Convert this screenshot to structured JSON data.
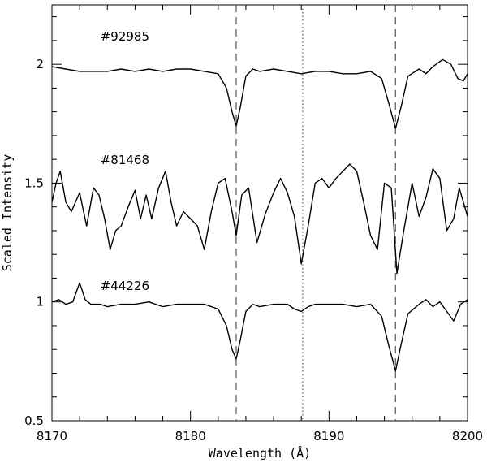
{
  "chart_data": {
    "type": "line",
    "title": "",
    "xlabel": "Wavelength (Å)",
    "ylabel": "Scaled Intensity",
    "xlim": [
      8170,
      8200
    ],
    "ylim": [
      0.5,
      2.25
    ],
    "grid": false,
    "x_ticks": [
      8170,
      8180,
      8190,
      8200
    ],
    "x_tick_labels": [
      "8170",
      "8180",
      "8190",
      "8200"
    ],
    "y_ticks": [
      0.5,
      1,
      1.5,
      2
    ],
    "y_tick_labels": [
      "0.5",
      "1",
      "1.5",
      "2"
    ],
    "reference_lines": [
      {
        "x": 8183.3,
        "style": "dashed",
        "color": "#555555"
      },
      {
        "x": 8188.1,
        "style": "dotted",
        "color": "#555555"
      },
      {
        "x": 8194.8,
        "style": "dashed",
        "color": "#555555"
      }
    ],
    "series": [
      {
        "name": "#92985",
        "label_position": [
          8173.5,
          2.1
        ],
        "x": [
          8170.0,
          8171.0,
          8172.0,
          8173.0,
          8174.0,
          8175.0,
          8176.0,
          8177.0,
          8178.0,
          8179.0,
          8180.0,
          8181.0,
          8182.0,
          8182.6,
          8183.0,
          8183.3,
          8183.6,
          8184.0,
          8184.5,
          8185.0,
          8186.0,
          8187.0,
          8188.0,
          8189.0,
          8190.0,
          8191.0,
          8192.0,
          8193.0,
          8193.8,
          8194.3,
          8194.8,
          8195.2,
          8195.7,
          8196.5,
          8197.0,
          8197.5,
          8198.2,
          8198.8,
          8199.3,
          8199.7,
          8200.0
        ],
        "y": [
          1.99,
          1.98,
          1.97,
          1.97,
          1.97,
          1.98,
          1.97,
          1.98,
          1.97,
          1.98,
          1.98,
          1.97,
          1.96,
          1.9,
          1.8,
          1.74,
          1.82,
          1.95,
          1.98,
          1.97,
          1.98,
          1.97,
          1.96,
          1.97,
          1.97,
          1.96,
          1.96,
          1.97,
          1.94,
          1.84,
          1.73,
          1.82,
          1.95,
          1.98,
          1.96,
          1.99,
          2.02,
          2.0,
          1.94,
          1.93,
          1.96
        ]
      },
      {
        "name": "#81468",
        "label_position": [
          8173.5,
          1.58
        ],
        "x": [
          8170.0,
          8170.3,
          8170.6,
          8171.0,
          8171.4,
          8172.0,
          8172.5,
          8173.0,
          8173.4,
          8173.8,
          8174.2,
          8174.6,
          8175.0,
          8175.5,
          8176.0,
          8176.4,
          8176.8,
          8177.2,
          8177.7,
          8178.2,
          8178.6,
          8179.0,
          8179.5,
          8180.0,
          8180.5,
          8181.0,
          8181.5,
          8182.0,
          8182.5,
          8183.0,
          8183.3,
          8183.7,
          8184.2,
          8184.8,
          8185.4,
          8186.0,
          8186.5,
          8187.0,
          8187.5,
          8188.0,
          8188.5,
          8189.0,
          8189.5,
          8190.0,
          8190.5,
          8191.0,
          8191.5,
          8192.0,
          8192.5,
          8193.0,
          8193.5,
          8194.0,
          8194.5,
          8194.9,
          8195.4,
          8196.0,
          8196.5,
          8197.0,
          8197.5,
          8198.0,
          8198.5,
          8199.0,
          8199.4,
          8199.7,
          8200.0
        ],
        "y": [
          1.42,
          1.5,
          1.55,
          1.42,
          1.38,
          1.46,
          1.32,
          1.48,
          1.45,
          1.35,
          1.22,
          1.3,
          1.32,
          1.4,
          1.47,
          1.35,
          1.45,
          1.35,
          1.48,
          1.55,
          1.42,
          1.32,
          1.38,
          1.35,
          1.32,
          1.22,
          1.38,
          1.5,
          1.52,
          1.38,
          1.28,
          1.45,
          1.48,
          1.25,
          1.37,
          1.46,
          1.52,
          1.46,
          1.36,
          1.16,
          1.32,
          1.5,
          1.52,
          1.48,
          1.52,
          1.55,
          1.58,
          1.55,
          1.42,
          1.28,
          1.22,
          1.5,
          1.48,
          1.12,
          1.3,
          1.5,
          1.36,
          1.44,
          1.56,
          1.52,
          1.3,
          1.35,
          1.48,
          1.42,
          1.36
        ]
      },
      {
        "name": "#44226",
        "label_position": [
          8173.5,
          1.05
        ],
        "x": [
          8170.0,
          8170.5,
          8171.0,
          8171.5,
          8172.0,
          8172.4,
          8172.8,
          8173.5,
          8174.0,
          8175.0,
          8176.0,
          8177.0,
          8178.0,
          8179.0,
          8180.0,
          8181.0,
          8182.0,
          8182.6,
          8183.0,
          8183.3,
          8183.6,
          8184.0,
          8184.5,
          8185.0,
          8186.0,
          8187.0,
          8187.5,
          8188.0,
          8188.5,
          8189.0,
          8190.0,
          8191.0,
          8192.0,
          8193.0,
          8193.8,
          8194.3,
          8194.8,
          8195.2,
          8195.7,
          8196.5,
          8197.0,
          8197.5,
          8198.0,
          8198.5,
          8199.0,
          8199.5,
          8200.0
        ],
        "y": [
          1.0,
          1.01,
          0.99,
          1.0,
          1.08,
          1.01,
          0.99,
          0.99,
          0.98,
          0.99,
          0.99,
          1.0,
          0.98,
          0.99,
          0.99,
          0.99,
          0.97,
          0.9,
          0.8,
          0.76,
          0.84,
          0.96,
          0.99,
          0.98,
          0.99,
          0.99,
          0.97,
          0.96,
          0.98,
          0.99,
          0.99,
          0.99,
          0.98,
          0.99,
          0.94,
          0.82,
          0.71,
          0.82,
          0.95,
          0.99,
          1.01,
          0.98,
          1.0,
          0.96,
          0.92,
          0.99,
          1.01
        ]
      }
    ]
  }
}
